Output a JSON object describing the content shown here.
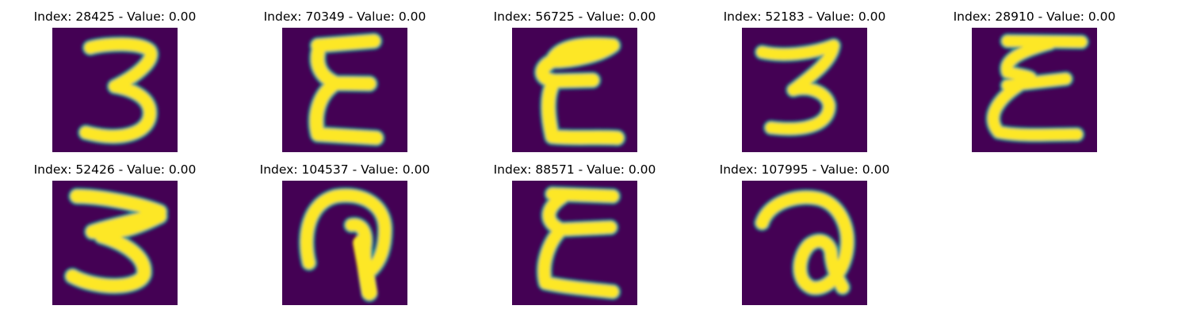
{
  "figure": {
    "colormap": "viridis",
    "background_color": "#440154",
    "stroke_color": "#fde725",
    "panels": [
      {
        "title": "Index: 28425 - Value: 0.00",
        "glyph": "3"
      },
      {
        "title": "Index: 70349 - Value: 0.00",
        "glyph": "epsilon-like"
      },
      {
        "title": "Index: 56725 - Value: 0.00",
        "glyph": "epsilon-like"
      },
      {
        "title": "Index: 52183 - Value: 0.00",
        "glyph": "3"
      },
      {
        "title": "Index: 28910 - Value: 0.00",
        "glyph": "epsilon-like"
      },
      {
        "title": "Index: 52426 - Value: 0.00",
        "glyph": "3"
      },
      {
        "title": "Index: 104537 - Value: 0.00",
        "glyph": "loop-hook"
      },
      {
        "title": "Index: 88571 - Value: 0.00",
        "glyph": "epsilon-like"
      },
      {
        "title": "Index: 107995 - Value: 0.00",
        "glyph": "a-like-loop"
      }
    ]
  }
}
